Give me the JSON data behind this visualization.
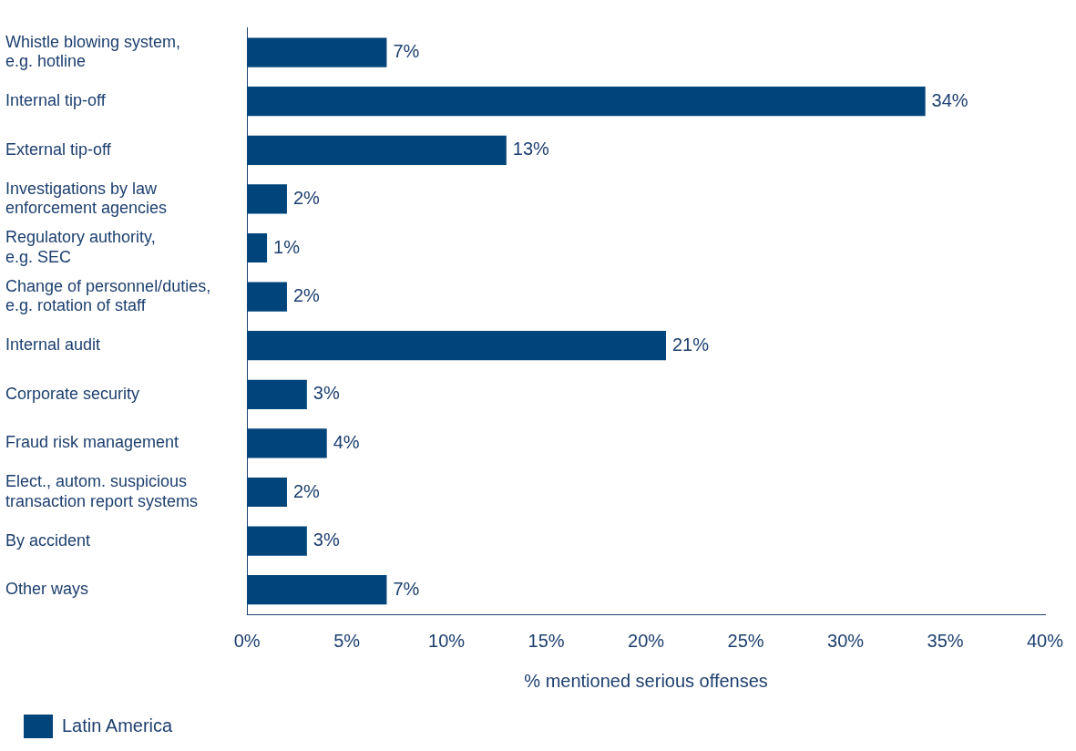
{
  "chart_data": {
    "type": "bar",
    "orientation": "horizontal",
    "xlabel": "% mentioned serious offenses",
    "categories": [
      "Whistle blowing system,\ne.g. hotline",
      "Internal tip-off",
      "External tip-off",
      "Investigations by law\nenforcement agencies",
      "Regulatory authority,\ne.g. SEC",
      "Change of personnel/duties,\ne.g. rotation of staff",
      "Internal audit",
      "Corporate security",
      "Fraud risk management",
      "Elect., autom. suspicious\ntransaction report systems",
      "By accident",
      "Other ways"
    ],
    "series": [
      {
        "name": "Latin America",
        "color": "#00447c",
        "values": [
          7,
          34,
          13,
          2,
          1,
          2,
          21,
          3,
          4,
          2,
          3,
          7
        ],
        "value_labels": [
          "7%",
          "34%",
          "13%",
          "2%",
          "1%",
          "2%",
          "21%",
          "3%",
          "4%",
          "2%",
          "3%",
          "7%"
        ]
      }
    ],
    "xlim": [
      0,
      40
    ],
    "xticks": [
      {
        "value": 0,
        "label": "0%"
      },
      {
        "value": 5,
        "label": "5%"
      },
      {
        "value": 10,
        "label": "10%"
      },
      {
        "value": 15,
        "label": "15%"
      },
      {
        "value": 20,
        "label": "20%"
      },
      {
        "value": 25,
        "label": "25%"
      },
      {
        "value": 30,
        "label": "30%"
      },
      {
        "value": 35,
        "label": "35%"
      },
      {
        "value": 40,
        "label": "40%"
      }
    ],
    "grid": false,
    "legend": "bottom left"
  }
}
